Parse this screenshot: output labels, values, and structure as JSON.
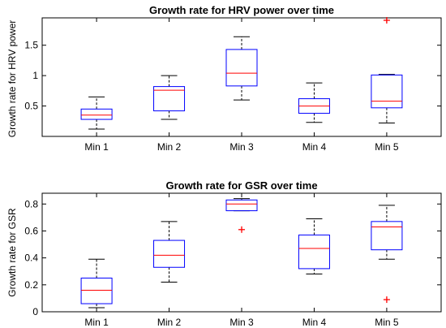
{
  "chart_data": [
    {
      "type": "box",
      "title": "Growth rate for HRV power over time",
      "ylabel": "Growth rate for HRV power",
      "xlabel": "",
      "categories": [
        "Min 1",
        "Min 2",
        "Min 3",
        "Min 4",
        "Min 5"
      ],
      "ylim": [
        0,
        1.95
      ],
      "yticks": [
        0.5,
        1,
        1.5
      ],
      "ytick_labels": [
        "0.5",
        "1",
        "1.5"
      ],
      "boxes": [
        {
          "whisker_low": 0.12,
          "q1": 0.28,
          "median": 0.35,
          "q3": 0.45,
          "whisker_high": 0.65,
          "outliers": []
        },
        {
          "whisker_low": 0.28,
          "q1": 0.42,
          "median": 0.76,
          "q3": 0.82,
          "whisker_high": 1.0,
          "outliers": []
        },
        {
          "whisker_low": 0.6,
          "q1": 0.83,
          "median": 1.04,
          "q3": 1.43,
          "whisker_high": 1.64,
          "outliers": []
        },
        {
          "whisker_low": 0.23,
          "q1": 0.38,
          "median": 0.5,
          "q3": 0.62,
          "whisker_high": 0.88,
          "outliers": []
        },
        {
          "whisker_low": 0.22,
          "q1": 0.47,
          "median": 0.58,
          "q3": 1.01,
          "whisker_high": 1.02,
          "outliers": [
            1.91
          ]
        }
      ],
      "colors": {
        "box": "#0000ff",
        "median": "#ff0000",
        "whisker": "#000000",
        "outlier": "#ff0000"
      }
    },
    {
      "type": "box",
      "title": "Growth rate for GSR over time",
      "ylabel": "Growth rate for GSR",
      "xlabel": "",
      "categories": [
        "Min 1",
        "Min 2",
        "Min 3",
        "Min 4",
        "Min 5"
      ],
      "ylim": [
        0,
        0.88
      ],
      "yticks": [
        0,
        0.2,
        0.4,
        0.6,
        0.8
      ],
      "ytick_labels": [
        "0",
        "0.2",
        "0.4",
        "0.6",
        "0.8"
      ],
      "boxes": [
        {
          "whisker_low": 0.03,
          "q1": 0.06,
          "median": 0.16,
          "q3": 0.25,
          "whisker_high": 0.39,
          "outliers": []
        },
        {
          "whisker_low": 0.22,
          "q1": 0.33,
          "median": 0.42,
          "q3": 0.53,
          "whisker_high": 0.67,
          "outliers": []
        },
        {
          "whisker_low": 0.75,
          "q1": 0.75,
          "median": 0.8,
          "q3": 0.83,
          "whisker_high": 0.84,
          "outliers": [
            0.61
          ]
        },
        {
          "whisker_low": 0.28,
          "q1": 0.32,
          "median": 0.47,
          "q3": 0.57,
          "whisker_high": 0.69,
          "outliers": []
        },
        {
          "whisker_low": 0.39,
          "q1": 0.46,
          "median": 0.63,
          "q3": 0.67,
          "whisker_high": 0.79,
          "outliers": [
            0.09
          ]
        }
      ],
      "colors": {
        "box": "#0000ff",
        "median": "#ff0000",
        "whisker": "#000000",
        "outlier": "#ff0000"
      }
    }
  ]
}
